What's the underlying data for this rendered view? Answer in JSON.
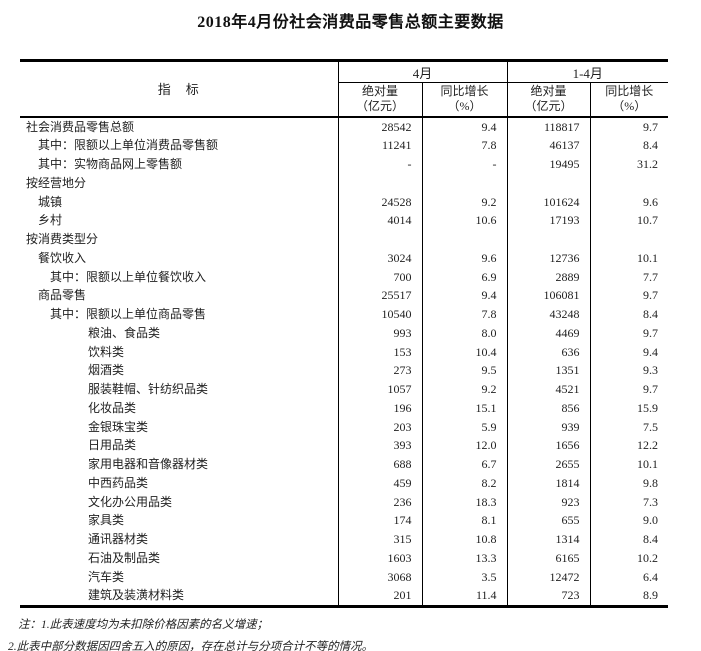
{
  "title": "2018年4月份社会消费品零售总额主要数据",
  "table": {
    "header": {
      "indicator_label": "指　标",
      "group_april": "4月",
      "group_cumulative": "1-4月",
      "col_abs_line1": "绝对量",
      "col_abs_line2": "（亿元）",
      "col_yoy_line1": "同比增长",
      "col_yoy_line2": "（%）"
    },
    "rows": [
      {
        "label": "社会消费品零售总额",
        "indent": 0,
        "cells": [
          "28542",
          "9.4",
          "118817",
          "9.7"
        ]
      },
      {
        "label": "其中：限额以上单位消费品零售额",
        "indent": 1,
        "cells": [
          "11241",
          "7.8",
          "46137",
          "8.4"
        ]
      },
      {
        "label": "其中：实物商品网上零售额",
        "indent": 1,
        "cells": [
          "-",
          "-",
          "19495",
          "31.2"
        ]
      },
      {
        "label": "按经营地分",
        "indent": 0,
        "cells": [
          "",
          "",
          "",
          ""
        ]
      },
      {
        "label": "城镇",
        "indent": 1,
        "cells": [
          "24528",
          "9.2",
          "101624",
          "9.6"
        ]
      },
      {
        "label": "乡村",
        "indent": 1,
        "cells": [
          "4014",
          "10.6",
          "17193",
          "10.7"
        ]
      },
      {
        "label": "按消费类型分",
        "indent": 0,
        "cells": [
          "",
          "",
          "",
          ""
        ]
      },
      {
        "label": "餐饮收入",
        "indent": 1,
        "cells": [
          "3024",
          "9.6",
          "12736",
          "10.1"
        ]
      },
      {
        "label": "其中：限额以上单位餐饮收入",
        "indent": 2,
        "cells": [
          "700",
          "6.9",
          "2889",
          "7.7"
        ]
      },
      {
        "label": "商品零售",
        "indent": 1,
        "cells": [
          "25517",
          "9.4",
          "106081",
          "9.7"
        ]
      },
      {
        "label": "其中：限额以上单位商品零售",
        "indent": 2,
        "cells": [
          "10540",
          "7.8",
          "43248",
          "8.4"
        ]
      },
      {
        "label": "粮油、食品类",
        "indent": 3,
        "cells": [
          "993",
          "8.0",
          "4469",
          "9.7"
        ]
      },
      {
        "label": "饮料类",
        "indent": 3,
        "cells": [
          "153",
          "10.4",
          "636",
          "9.4"
        ]
      },
      {
        "label": "烟酒类",
        "indent": 3,
        "cells": [
          "273",
          "9.5",
          "1351",
          "9.3"
        ]
      },
      {
        "label": "服装鞋帽、针纺织品类",
        "indent": 3,
        "cells": [
          "1057",
          "9.2",
          "4521",
          "9.7"
        ]
      },
      {
        "label": "化妆品类",
        "indent": 3,
        "cells": [
          "196",
          "15.1",
          "856",
          "15.9"
        ]
      },
      {
        "label": "金银珠宝类",
        "indent": 3,
        "cells": [
          "203",
          "5.9",
          "939",
          "7.5"
        ]
      },
      {
        "label": "日用品类",
        "indent": 3,
        "cells": [
          "393",
          "12.0",
          "1656",
          "12.2"
        ]
      },
      {
        "label": "家用电器和音像器材类",
        "indent": 3,
        "cells": [
          "688",
          "6.7",
          "2655",
          "10.1"
        ]
      },
      {
        "label": "中西药品类",
        "indent": 3,
        "cells": [
          "459",
          "8.2",
          "1814",
          "9.8"
        ]
      },
      {
        "label": "文化办公用品类",
        "indent": 3,
        "cells": [
          "236",
          "18.3",
          "923",
          "7.3"
        ]
      },
      {
        "label": "家具类",
        "indent": 3,
        "cells": [
          "174",
          "8.1",
          "655",
          "9.0"
        ]
      },
      {
        "label": "通讯器材类",
        "indent": 3,
        "cells": [
          "315",
          "10.8",
          "1314",
          "8.4"
        ]
      },
      {
        "label": "石油及制品类",
        "indent": 3,
        "cells": [
          "1603",
          "13.3",
          "6165",
          "10.2"
        ]
      },
      {
        "label": "汽车类",
        "indent": 3,
        "cells": [
          "3068",
          "3.5",
          "12472",
          "6.4"
        ]
      },
      {
        "label": "建筑及装潢材料类",
        "indent": 3,
        "cells": [
          "201",
          "11.4",
          "723",
          "8.9"
        ]
      }
    ]
  },
  "notes": [
    "注：1.此表速度均为未扣除价格因素的名义增速；",
    "2.此表中部分数据因四舍五入的原因，存在总计与分项合计不等的情况。"
  ]
}
